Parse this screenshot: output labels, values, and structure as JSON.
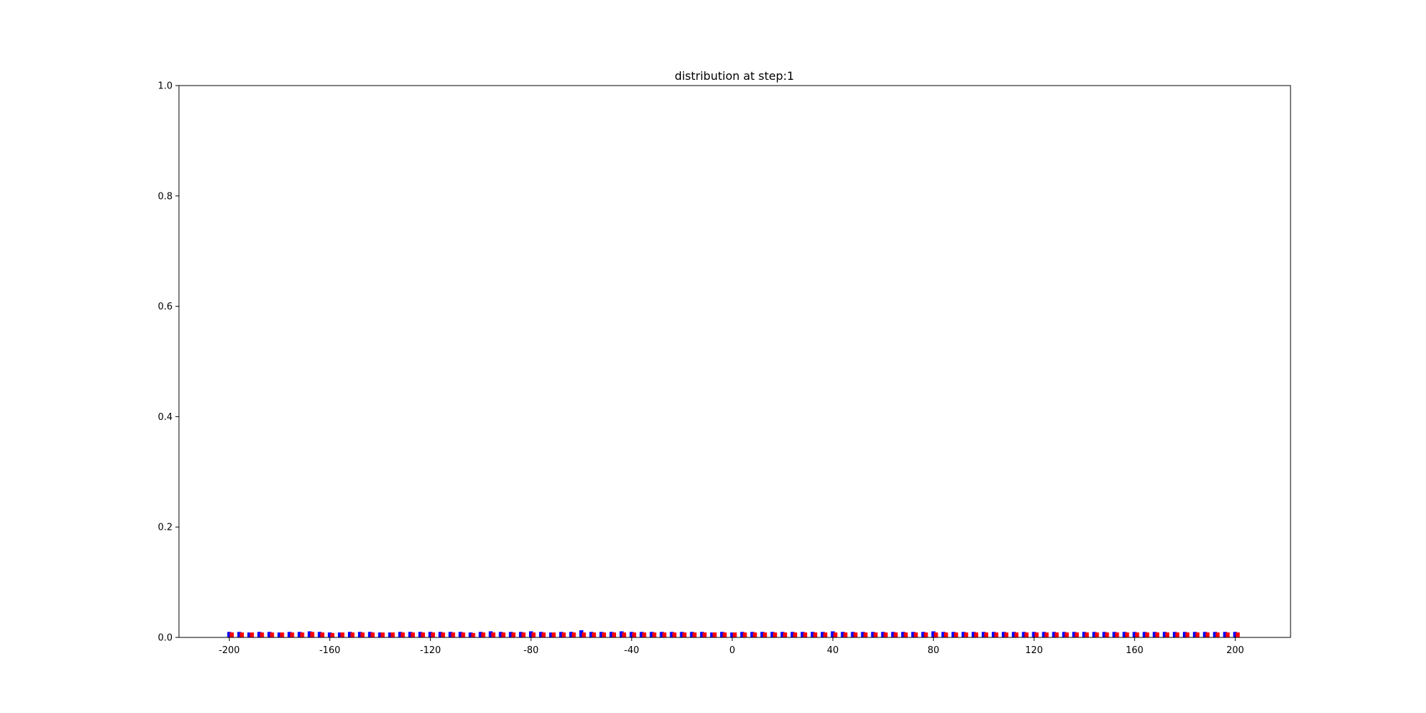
{
  "chart_data": {
    "type": "bar",
    "title": "distribution at step:1",
    "xlabel": "",
    "ylabel": "",
    "xlim": [
      -220,
      222
    ],
    "ylim": [
      0,
      1
    ],
    "x_ticks": [
      -200,
      -160,
      -120,
      -80,
      -40,
      0,
      40,
      80,
      120,
      160,
      200
    ],
    "x_tick_labels": [
      "-200",
      "-160",
      "-120",
      "-80",
      "-40",
      "0",
      "40",
      "80",
      "120",
      "160",
      "200"
    ],
    "y_ticks": [
      0,
      0.2,
      0.4,
      0.6,
      0.8,
      1.0
    ],
    "y_tick_labels": [
      "0.0",
      "0.2",
      "0.4",
      "0.6",
      "0.8",
      "1.0"
    ],
    "grid": false,
    "bar_x_start": -200,
    "bar_x_step": 4,
    "bar_offset": 1,
    "series": [
      {
        "color": "#0000ff",
        "values": [
          0.01,
          0.01,
          0.009,
          0.01,
          0.01,
          0.009,
          0.01,
          0.01,
          0.011,
          0.01,
          0.009,
          0.009,
          0.01,
          0.01,
          0.01,
          0.009,
          0.009,
          0.01,
          0.01,
          0.01,
          0.01,
          0.01,
          0.01,
          0.01,
          0.009,
          0.01,
          0.011,
          0.01,
          0.01,
          0.01,
          0.011,
          0.01,
          0.009,
          0.01,
          0.01,
          0.013,
          0.01,
          0.01,
          0.01,
          0.011,
          0.01,
          0.01,
          0.01,
          0.01,
          0.01,
          0.01,
          0.01,
          0.01,
          0.009,
          0.01,
          0.009,
          0.01,
          0.01,
          0.01,
          0.01,
          0.01,
          0.01,
          0.01,
          0.01,
          0.01,
          0.011,
          0.01,
          0.01,
          0.01,
          0.01,
          0.01,
          0.01,
          0.01,
          0.01,
          0.01,
          0.011,
          0.01,
          0.01,
          0.01,
          0.01,
          0.01,
          0.01,
          0.01,
          0.01,
          0.01,
          0.01,
          0.01,
          0.01,
          0.01,
          0.01,
          0.01,
          0.01,
          0.01,
          0.01,
          0.01,
          0.01,
          0.01,
          0.01,
          0.01,
          0.01,
          0.01,
          0.01,
          0.01,
          0.01,
          0.01,
          0.01
        ]
      },
      {
        "color": "#ff0000",
        "values": [
          0.009,
          0.009,
          0.009,
          0.009,
          0.009,
          0.009,
          0.009,
          0.009,
          0.01,
          0.009,
          0.008,
          0.009,
          0.009,
          0.009,
          0.009,
          0.009,
          0.009,
          0.009,
          0.009,
          0.009,
          0.009,
          0.009,
          0.009,
          0.009,
          0.008,
          0.009,
          0.009,
          0.009,
          0.009,
          0.009,
          0.009,
          0.009,
          0.009,
          0.009,
          0.009,
          0.009,
          0.009,
          0.009,
          0.009,
          0.009,
          0.009,
          0.009,
          0.009,
          0.009,
          0.009,
          0.009,
          0.009,
          0.009,
          0.009,
          0.009,
          0.009,
          0.009,
          0.009,
          0.009,
          0.009,
          0.009,
          0.009,
          0.009,
          0.009,
          0.009,
          0.009,
          0.009,
          0.009,
          0.009,
          0.009,
          0.009,
          0.009,
          0.009,
          0.009,
          0.009,
          0.009,
          0.009,
          0.009,
          0.009,
          0.009,
          0.009,
          0.009,
          0.009,
          0.009,
          0.009,
          0.009,
          0.009,
          0.009,
          0.009,
          0.009,
          0.009,
          0.009,
          0.009,
          0.009,
          0.009,
          0.009,
          0.009,
          0.009,
          0.009,
          0.009,
          0.009,
          0.009,
          0.009,
          0.009,
          0.009,
          0.009
        ]
      }
    ]
  }
}
